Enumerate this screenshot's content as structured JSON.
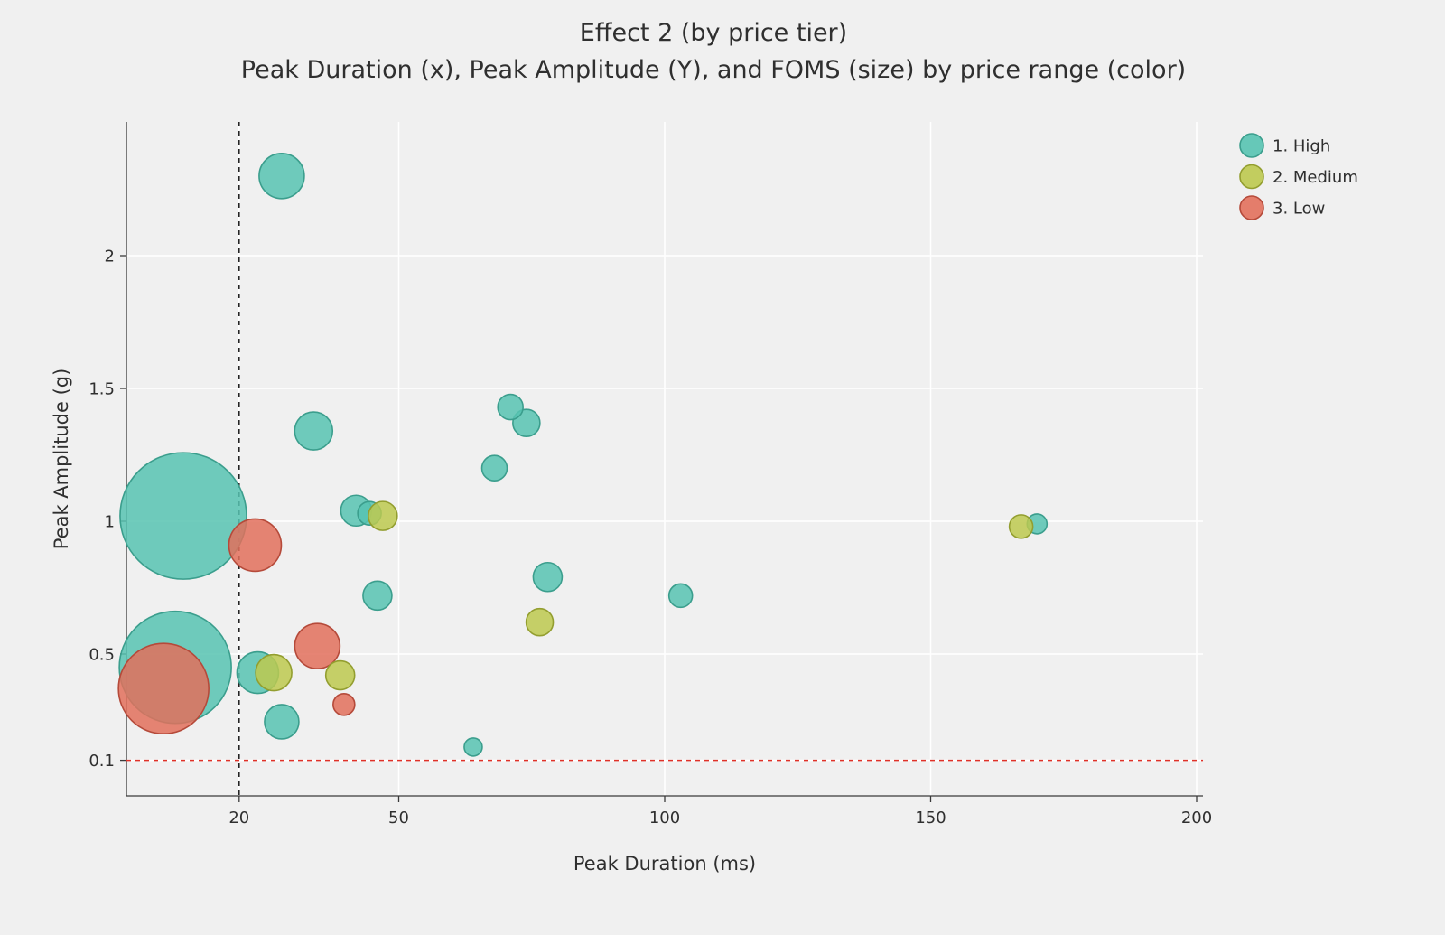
{
  "chart_data": {
    "type": "scatter",
    "title": "Effect 2 (by price tier)",
    "subtitle": "Peak Duration (x), Peak Amplitude (Y), and FOMS (size) by price range (color)",
    "xlabel": "Peak Duration (ms)",
    "ylabel": "Peak Amplitude (g)",
    "xlim": [
      0,
      200
    ],
    "ylim": [
      0,
      2.5
    ],
    "grid": true,
    "legend_position": "right-top-outside",
    "size_encoding": "FOMS (relative bubble size, px radius as rendered)",
    "x_ticks": [
      {
        "value": 20,
        "label": "20"
      },
      {
        "value": 50,
        "label": "50"
      },
      {
        "value": 100,
        "label": "100"
      },
      {
        "value": 150,
        "label": "150"
      },
      {
        "value": 200,
        "label": "200"
      }
    ],
    "y_ticks": [
      {
        "value": 0.1,
        "label": "0.1"
      },
      {
        "value": 0.5,
        "label": "0.5"
      },
      {
        "value": 1,
        "label": "1"
      },
      {
        "value": 1.5,
        "label": "1.5"
      },
      {
        "value": 2,
        "label": "2"
      }
    ],
    "series_colors": {
      "1. High": {
        "fill": "#57c3b1",
        "stroke": "#3b9e8d"
      },
      "2. Medium": {
        "fill": "#bdc94f",
        "stroke": "#939e2f"
      },
      "3. Low": {
        "fill": "#e2705c",
        "stroke": "#b54a3a"
      }
    },
    "legend": [
      {
        "label": "1. High"
      },
      {
        "label": "2. Medium"
      },
      {
        "label": "3. Low"
      }
    ],
    "reference_lines": [
      {
        "orientation": "vertical",
        "value": 20,
        "color": "#1a1a1a",
        "style": "dashed"
      },
      {
        "orientation": "horizontal",
        "value": 0.1,
        "color": "#e03128",
        "style": "dashed"
      }
    ],
    "points": [
      {
        "x": 9.5,
        "y": 1.02,
        "size": 70,
        "tier": "1. High"
      },
      {
        "x": 8,
        "y": 0.45,
        "size": 62,
        "tier": "1. High"
      },
      {
        "x": 5.8,
        "y": 0.37,
        "size": 50,
        "tier": "3. Low"
      },
      {
        "x": 23,
        "y": 0.91,
        "size": 29,
        "tier": "3. Low"
      },
      {
        "x": 34.7,
        "y": 0.53,
        "size": 25,
        "tier": "3. Low"
      },
      {
        "x": 28,
        "y": 2.3,
        "size": 25,
        "tier": "1. High"
      },
      {
        "x": 23.5,
        "y": 0.43,
        "size": 23,
        "tier": "1. High"
      },
      {
        "x": 34,
        "y": 1.34,
        "size": 21,
        "tier": "1. High"
      },
      {
        "x": 26.5,
        "y": 0.43,
        "size": 20,
        "tier": "2. Medium"
      },
      {
        "x": 28,
        "y": 0.245,
        "size": 19,
        "tier": "1. High"
      },
      {
        "x": 42,
        "y": 1.04,
        "size": 17,
        "tier": "1. High"
      },
      {
        "x": 44.5,
        "y": 1.03,
        "size": 13,
        "tier": "1. High"
      },
      {
        "x": 47,
        "y": 1.02,
        "size": 16,
        "tier": "2. Medium"
      },
      {
        "x": 78,
        "y": 0.79,
        "size": 16,
        "tier": "1. High"
      },
      {
        "x": 46,
        "y": 0.72,
        "size": 16,
        "tier": "1. High"
      },
      {
        "x": 39,
        "y": 0.42,
        "size": 16,
        "tier": "2. Medium"
      },
      {
        "x": 74,
        "y": 1.37,
        "size": 15,
        "tier": "1. High"
      },
      {
        "x": 71,
        "y": 1.43,
        "size": 14,
        "tier": "1. High"
      },
      {
        "x": 68,
        "y": 1.2,
        "size": 14,
        "tier": "1. High"
      },
      {
        "x": 76.5,
        "y": 0.62,
        "size": 15,
        "tier": "2. Medium"
      },
      {
        "x": 103,
        "y": 0.72,
        "size": 13,
        "tier": "1. High"
      },
      {
        "x": 39.7,
        "y": 0.31,
        "size": 12,
        "tier": "3. Low"
      },
      {
        "x": 170,
        "y": 0.99,
        "size": 11,
        "tier": "1. High"
      },
      {
        "x": 167,
        "y": 0.98,
        "size": 13,
        "tier": "2. Medium"
      },
      {
        "x": 64,
        "y": 0.15,
        "size": 10,
        "tier": "1. High"
      }
    ]
  },
  "colors": {
    "background": "#f0f0f0",
    "grid": "#ffffff",
    "axis": "#3a3a3a",
    "text": "#2f2f2f"
  }
}
